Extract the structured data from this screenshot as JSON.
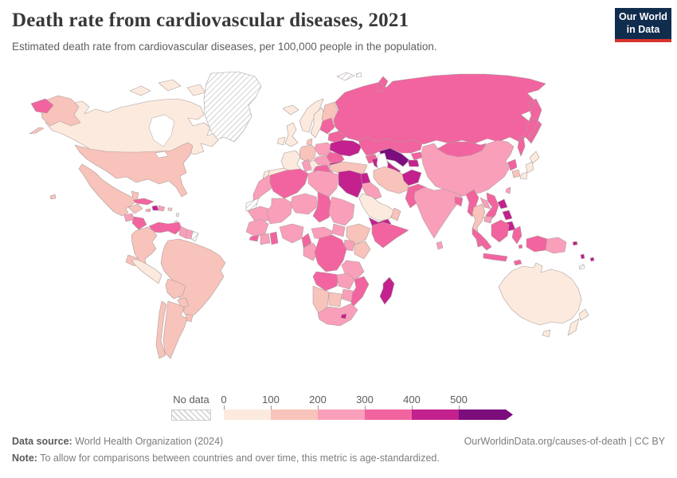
{
  "header": {
    "title": "Death rate from cardiovascular diseases, 2021",
    "subtitle": "Estimated death rate from cardiovascular diseases, per 100,000 people in the population.",
    "logo": {
      "line1": "Our World",
      "line2": "in Data",
      "bg": "#102d4e",
      "accent": "#d8352e"
    }
  },
  "legend": {
    "no_data_label": "No data",
    "ticks": [
      "0",
      "100",
      "200",
      "300",
      "400",
      "500"
    ]
  },
  "footer": {
    "source_label": "Data source:",
    "source_text": " World Health Organization (2024)",
    "right_text": "OurWorldinData.org/causes-of-death | CC BY",
    "note_label": "Note:",
    "note_text": " To allow for comparisons between countries and over time, this metric is age-standardized."
  },
  "chart_data": {
    "type": "choropleth",
    "title": "Death rate from cardiovascular diseases, 2021",
    "unit": "deaths per 100,000 people (age-standardized)",
    "year": 2021,
    "legend_position": "bottom",
    "bands": [
      {
        "range": "0-100",
        "color": "#fceade"
      },
      {
        "range": "100-200",
        "color": "#f8c3ba"
      },
      {
        "range": "200-300",
        "color": "#f99fba"
      },
      {
        "range": "300-400",
        "color": "#f2649f"
      },
      {
        "range": "400-500",
        "color": "#c3218e"
      },
      {
        "range": "500+",
        "color": "#7b0d7d"
      }
    ],
    "no_data_color": "hatch",
    "country_bands": {
      "greenland": "nodata",
      "svalbard": "nodata",
      "western-sahara": "nodata",
      "french-guiana": "nodata",
      "lesser-antilles": "nodata",
      "new-caledonia": "nodata",
      "canada": 0,
      "iceland": 0,
      "united-kingdom": 0,
      "ireland": 0,
      "norway": 0,
      "sweden": 0,
      "france": 0,
      "spain": 0,
      "portugal": 0,
      "italy": 0,
      "peru": 0,
      "japan": 0,
      "australia": 0,
      "new-zealand": 0,
      "saudi-arabia": 0,
      "usa": 1,
      "mexico": 1,
      "colombia": 1,
      "ecuador": 1,
      "brazil": 1,
      "bolivia": 1,
      "paraguay": 1,
      "uruguay": 1,
      "argentina": 1,
      "chile": 1,
      "puerto-rico": 1,
      "finland": 1,
      "denmark": 1,
      "germany": 1,
      "turkey": 1,
      "levant": 1,
      "iran": 1,
      "oman": 1,
      "south-korea": 1,
      "thailand": 1,
      "ethiopia": 1,
      "kenya": 1,
      "namibia": 1,
      "botswana": 1,
      "guatemala": 2,
      "costa-rica-panama": 2,
      "dominican-republic": 2,
      "jamaica": 2,
      "guyana": 2,
      "suriname": 2,
      "poland": 2,
      "central-europe": 2,
      "greece": 2,
      "iraq": 2,
      "india": 2,
      "sri-lanka": 2,
      "laos": 2,
      "cambodia": 2,
      "taiwan": 2,
      "papua-new-guinea": 2,
      "morocco": 2,
      "tunisia": 2,
      "libya": 2,
      "mauritania": 2,
      "mali": 2,
      "niger": 2,
      "sudan": 2,
      "west-africa": 2,
      "ivory-coast": 2,
      "nigeria": 2,
      "central-african-republic": 2,
      "south-sudan": 2,
      "uganda": 2,
      "congo": 2,
      "tanzania": 2,
      "zambia": 2,
      "zimbabwe": 2,
      "south-africa": 2,
      "cuba": 3,
      "honduras-nicaragua": 3,
      "venezuela": 3,
      "balkans": 3,
      "romania": 3,
      "baltics": 3,
      "belarus": 3,
      "russia": 3,
      "kazakhstan": 3,
      "caucasus": 3,
      "kyrgyzstan": 3,
      "mongolia": 3,
      "china": 2,
      "north-korea": 3,
      "pakistan": 3,
      "bangladesh": 3,
      "myanmar": 3,
      "vietnam": 3,
      "malaysia": 3,
      "indonesia": 3,
      "algeria": 3,
      "chad": 3,
      "sierra-leone-liberia": 3,
      "ghana": 3,
      "cameroon": 3,
      "somalia": 3,
      "drc": 3,
      "angola": 3,
      "mozambique": 3,
      "haiti": 4,
      "ukraine": 4,
      "bulgaria": 4,
      "syria": 4,
      "turkmenistan": 4,
      "tajikistan": 4,
      "afghanistan": 4,
      "yemen": 4,
      "egypt": 4,
      "philippines": 4,
      "madagascar": 4,
      "lesotho": 4,
      "pacific-islands": 4,
      "uzbekistan": 5
    }
  }
}
